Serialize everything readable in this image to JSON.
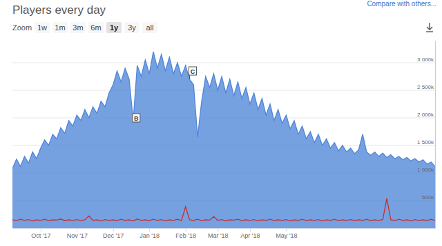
{
  "chart_data": {
    "type": "line",
    "title": "Players every day",
    "categories": [
      null,
      null,
      null,
      null,
      null,
      null,
      null,
      "Oct '17",
      null,
      null,
      null,
      null,
      null,
      null,
      null,
      null,
      "Nov '17",
      null,
      null,
      null,
      null,
      null,
      null,
      null,
      null,
      "Dec '17",
      null,
      null,
      null,
      null,
      null,
      null,
      null,
      null,
      "Jan '18",
      null,
      null,
      null,
      null,
      null,
      null,
      null,
      null,
      "Feb '18",
      null,
      null,
      null,
      null,
      null,
      null,
      null,
      "Mar '18",
      null,
      null,
      null,
      null,
      null,
      null,
      null,
      "Apr '18",
      null,
      null,
      null,
      null,
      null,
      null,
      null,
      null,
      "May '18",
      null,
      null,
      null,
      null,
      null,
      null,
      null,
      null,
      null,
      null,
      null,
      null,
      null,
      null,
      null,
      null,
      null,
      null,
      null,
      null,
      null,
      null,
      null,
      null,
      null,
      null,
      null,
      null,
      null,
      null,
      null,
      null,
      null,
      null,
      null,
      null,
      null
    ],
    "series": [
      {
        "type": "area",
        "color": "#4f86d9",
        "values": [
          1080000,
          1250000,
          1120000,
          1300000,
          1180000,
          1380000,
          1260000,
          1450000,
          1600000,
          1500000,
          1700000,
          1620000,
          1820000,
          1720000,
          1950000,
          1850000,
          2050000,
          1950000,
          2150000,
          2000000,
          2200000,
          2080000,
          2300000,
          2200000,
          2450000,
          2600000,
          2850000,
          2650000,
          2900000,
          2700000,
          1950000,
          2950000,
          2750000,
          3050000,
          2800000,
          3200000,
          2900000,
          3150000,
          2850000,
          3100000,
          2800000,
          3000000,
          2750000,
          2950000,
          2700000,
          2600000,
          1650000,
          2300000,
          2750000,
          2550000,
          2800000,
          2500000,
          2750000,
          2450000,
          2700000,
          2400000,
          2650000,
          2350000,
          2550000,
          2250000,
          2450000,
          2150000,
          2350000,
          2050000,
          2250000,
          1950000,
          2150000,
          1900000,
          2050000,
          1800000,
          1950000,
          1700000,
          1850000,
          1620000,
          1750000,
          1550000,
          1700000,
          1500000,
          1620000,
          1450000,
          1550000,
          1400000,
          1500000,
          1380000,
          1450000,
          1350000,
          1420000,
          1700000,
          1380000,
          1320000,
          1380000,
          1300000,
          1360000,
          1280000,
          1330000,
          1260000,
          1300000,
          1240000,
          1280000,
          1220000,
          1260000,
          1200000,
          1240000,
          1160000,
          1200000,
          1120000
        ]
      },
      {
        "type": "line",
        "color": "#cc2b2b",
        "values": [
          150000,
          135000,
          160000,
          140000,
          155000,
          130000,
          150000,
          140000,
          160000,
          135000,
          150000,
          145000,
          165000,
          135000,
          150000,
          140000,
          155000,
          135000,
          150000,
          220000,
          140000,
          150000,
          130000,
          155000,
          140000,
          150000,
          135000,
          160000,
          140000,
          150000,
          130000,
          165000,
          140000,
          150000,
          135000,
          160000,
          140000,
          155000,
          130000,
          150000,
          140000,
          160000,
          135000,
          390000,
          150000,
          140000,
          160000,
          135000,
          150000,
          145000,
          210000,
          140000,
          155000,
          130000,
          150000,
          145000,
          160000,
          135000,
          150000,
          140000,
          155000,
          130000,
          150000,
          140000,
          160000,
          135000,
          150000,
          140000,
          155000,
          130000,
          150000,
          140000,
          160000,
          135000,
          150000,
          140000,
          155000,
          130000,
          150000,
          140000,
          160000,
          135000,
          150000,
          140000,
          155000,
          135000,
          150000,
          140000,
          160000,
          135000,
          150000,
          140000,
          155000,
          540000,
          150000,
          135000,
          160000,
          140000,
          150000,
          130000,
          155000,
          140000,
          150000,
          135000,
          160000,
          140000
        ]
      }
    ],
    "ylim": [
      0,
      3400000
    ],
    "yticks": [
      {
        "value": 500000,
        "label": "500k"
      },
      {
        "value": 1000000,
        "label": "1 000k"
      },
      {
        "value": 1500000,
        "label": "1 500k"
      },
      {
        "value": 2000000,
        "label": "2 000k"
      },
      {
        "value": 2500000,
        "label": "2 500k"
      },
      {
        "value": 3000000,
        "label": "3 000k"
      }
    ],
    "grid": true,
    "annotations": [
      {
        "text": "B",
        "index": 30,
        "value": 2000000
      },
      {
        "text": "C",
        "index": 44,
        "value": 2850000
      }
    ]
  },
  "controls": {
    "compare": "Compare with others...",
    "zoom_label": "Zoom",
    "zoom_options": [
      "1w",
      "1m",
      "3m",
      "6m",
      "1y",
      "3y",
      "all"
    ],
    "selected": "1y"
  }
}
